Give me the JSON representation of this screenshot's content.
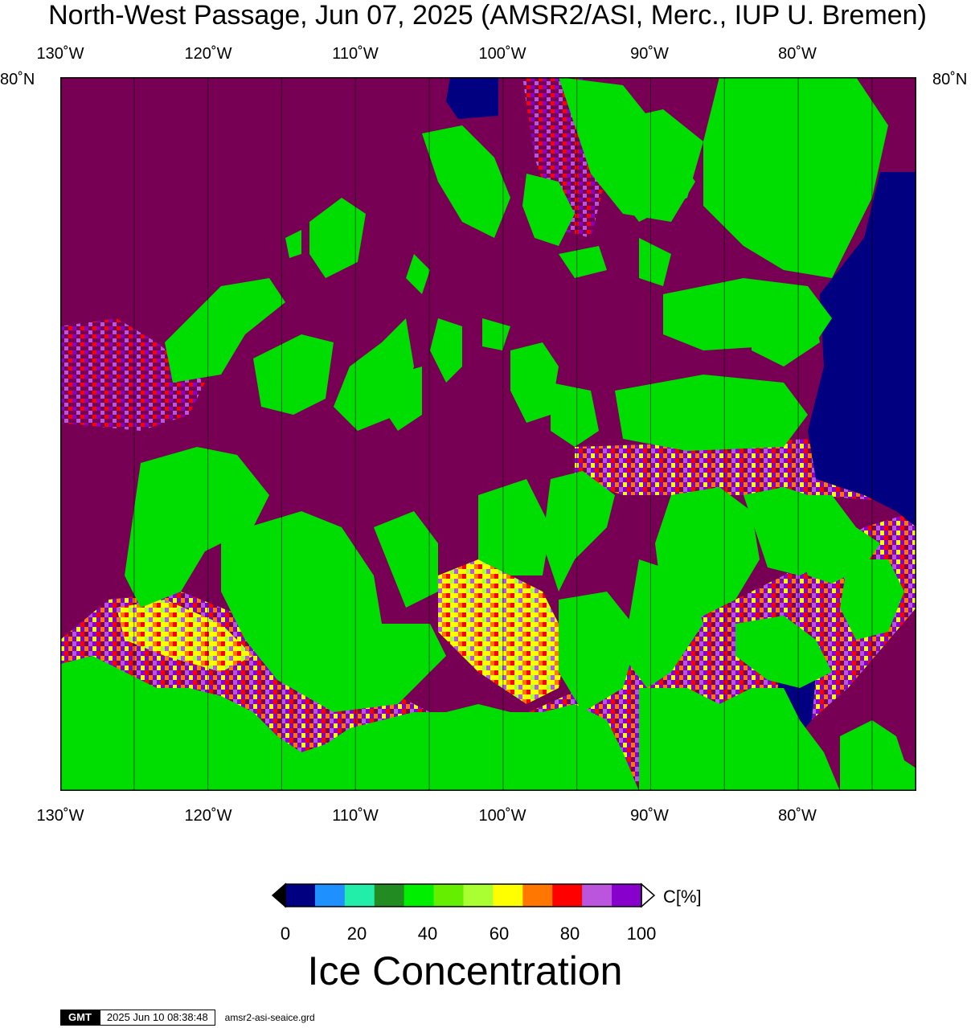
{
  "title": "North-West Passage, Jun 07, 2025 (AMSR2/ASI, Merc., IUP U. Bremen)",
  "map": {
    "lon_ticks_top": [
      "130˚W",
      "120˚W",
      "110˚W",
      "100˚W",
      "90˚W",
      "80˚W"
    ],
    "lon_ticks_bottom": [
      "130˚W",
      "120˚W",
      "110˚W",
      "100˚W",
      "90˚W",
      "80˚W"
    ],
    "lat_left": "80˚N",
    "lat_right": "80˚N",
    "lon_range": [
      -130,
      -72
    ],
    "lat_top": 80,
    "colors": {
      "land": "#00dd00",
      "full_ice": "#770055",
      "open_water": "#000080"
    }
  },
  "colorbar": {
    "unit_label": "C[%]",
    "tick_labels": [
      "0",
      "20",
      "40",
      "60",
      "80",
      "100"
    ],
    "bins": [
      "#000080",
      "#1e90ff",
      "#22eeaa",
      "#228b22",
      "#00ee00",
      "#66ee00",
      "#aaff33",
      "#ffff00",
      "#ff7700",
      "#ff0000",
      "#bb55dd",
      "#8800cc"
    ],
    "under_color": "#000000",
    "over_color": "#ffffff",
    "title": "Ice Concentration"
  },
  "footer": {
    "logo": "GMT",
    "timestamp": "2025 Jun 10 08:38:48",
    "filename": "amsr2-asi-seaice.grd"
  }
}
